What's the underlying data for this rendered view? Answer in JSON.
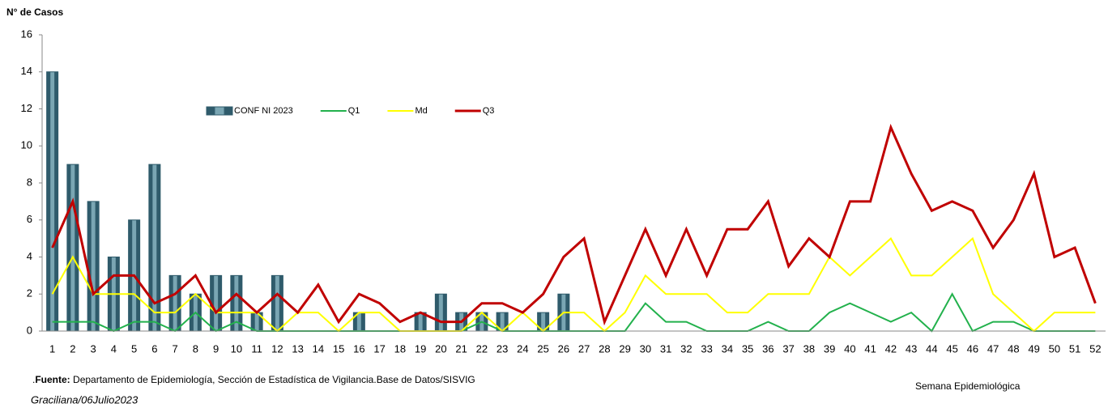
{
  "chart_data": {
    "type": "bar_line",
    "y_axis_label": "N° de Casos",
    "x_axis_label": "Semana Epidemiológica",
    "source_prefix": ".",
    "source_label": "Fuente:",
    "source_text": " Departamento de Epidemiología, Sección de Estadística de Vigilancia.Base de Datos/SISVIG",
    "author": "Graciliana/06Julio2023",
    "categories": [
      "1",
      "2",
      "3",
      "4",
      "5",
      "6",
      "7",
      "8",
      "9",
      "10",
      "11",
      "12",
      "13",
      "14",
      "15",
      "16",
      "17",
      "18",
      "19",
      "20",
      "21",
      "22",
      "23",
      "24",
      "25",
      "26",
      "27",
      "28",
      "29",
      "30",
      "31",
      "32",
      "33",
      "34",
      "35",
      "36",
      "37",
      "38",
      "39",
      "40",
      "41",
      "42",
      "43",
      "44",
      "45",
      "46",
      "47",
      "48",
      "49",
      "50",
      "51",
      "52"
    ],
    "ylim": [
      0,
      16
    ],
    "yticks": [
      0,
      2,
      4,
      6,
      8,
      10,
      12,
      14,
      16
    ],
    "series": [
      {
        "name": "CONF NI 2023",
        "kind": "bar",
        "color": "#2f5b6b",
        "values": [
          14,
          9,
          7,
          4,
          6,
          9,
          3,
          2,
          3,
          3,
          1,
          3,
          0,
          0,
          0,
          1,
          0,
          0,
          1,
          2,
          1,
          1,
          1,
          0,
          1,
          2,
          null,
          null,
          null,
          null,
          null,
          null,
          null,
          null,
          null,
          null,
          null,
          null,
          null,
          null,
          null,
          null,
          null,
          null,
          null,
          null,
          null,
          null,
          null,
          null,
          null,
          null
        ]
      },
      {
        "name": "Q1",
        "kind": "line",
        "color": "#22b14c",
        "values": [
          0.5,
          0.5,
          0.5,
          0,
          0.5,
          0.5,
          0,
          1,
          0,
          0.5,
          0,
          0,
          0,
          0,
          0,
          0,
          0,
          0,
          0,
          0,
          0,
          0.5,
          0,
          0,
          0,
          0,
          0,
          0,
          0,
          1.5,
          0.5,
          0.5,
          0,
          0,
          0,
          0.5,
          0,
          0,
          1,
          1.5,
          1,
          0.5,
          1,
          0,
          2,
          0,
          0.5,
          0.5,
          0,
          0,
          0,
          0
        ]
      },
      {
        "name": "Md",
        "kind": "line",
        "color": "#ffff00",
        "values": [
          2,
          4,
          2,
          2,
          2,
          1,
          1,
          2,
          1,
          1,
          1,
          0,
          1,
          1,
          0,
          1,
          1,
          0,
          0,
          0,
          0,
          1,
          0,
          1,
          0,
          1,
          1,
          0,
          1,
          3,
          2,
          2,
          2,
          1,
          1,
          2,
          2,
          2,
          4,
          3,
          4,
          5,
          3,
          3,
          4,
          5,
          2,
          1,
          0,
          1,
          1,
          1
        ]
      },
      {
        "name": "Q3",
        "kind": "line",
        "color": "#c00000",
        "values": [
          4.5,
          7,
          2,
          3,
          3,
          1.5,
          2,
          3,
          1,
          2,
          1,
          2,
          1,
          2.5,
          0.5,
          2,
          1.5,
          0.5,
          1,
          0.5,
          0.5,
          1.5,
          1.5,
          1,
          2,
          4,
          5,
          0.5,
          3,
          5.5,
          3,
          5.5,
          3,
          5.5,
          5.5,
          7,
          3.5,
          5,
          4,
          7,
          7,
          11,
          8.5,
          6.5,
          7,
          6.5,
          4.5,
          6,
          8.5,
          4,
          4.5,
          1.5
        ]
      }
    ]
  }
}
